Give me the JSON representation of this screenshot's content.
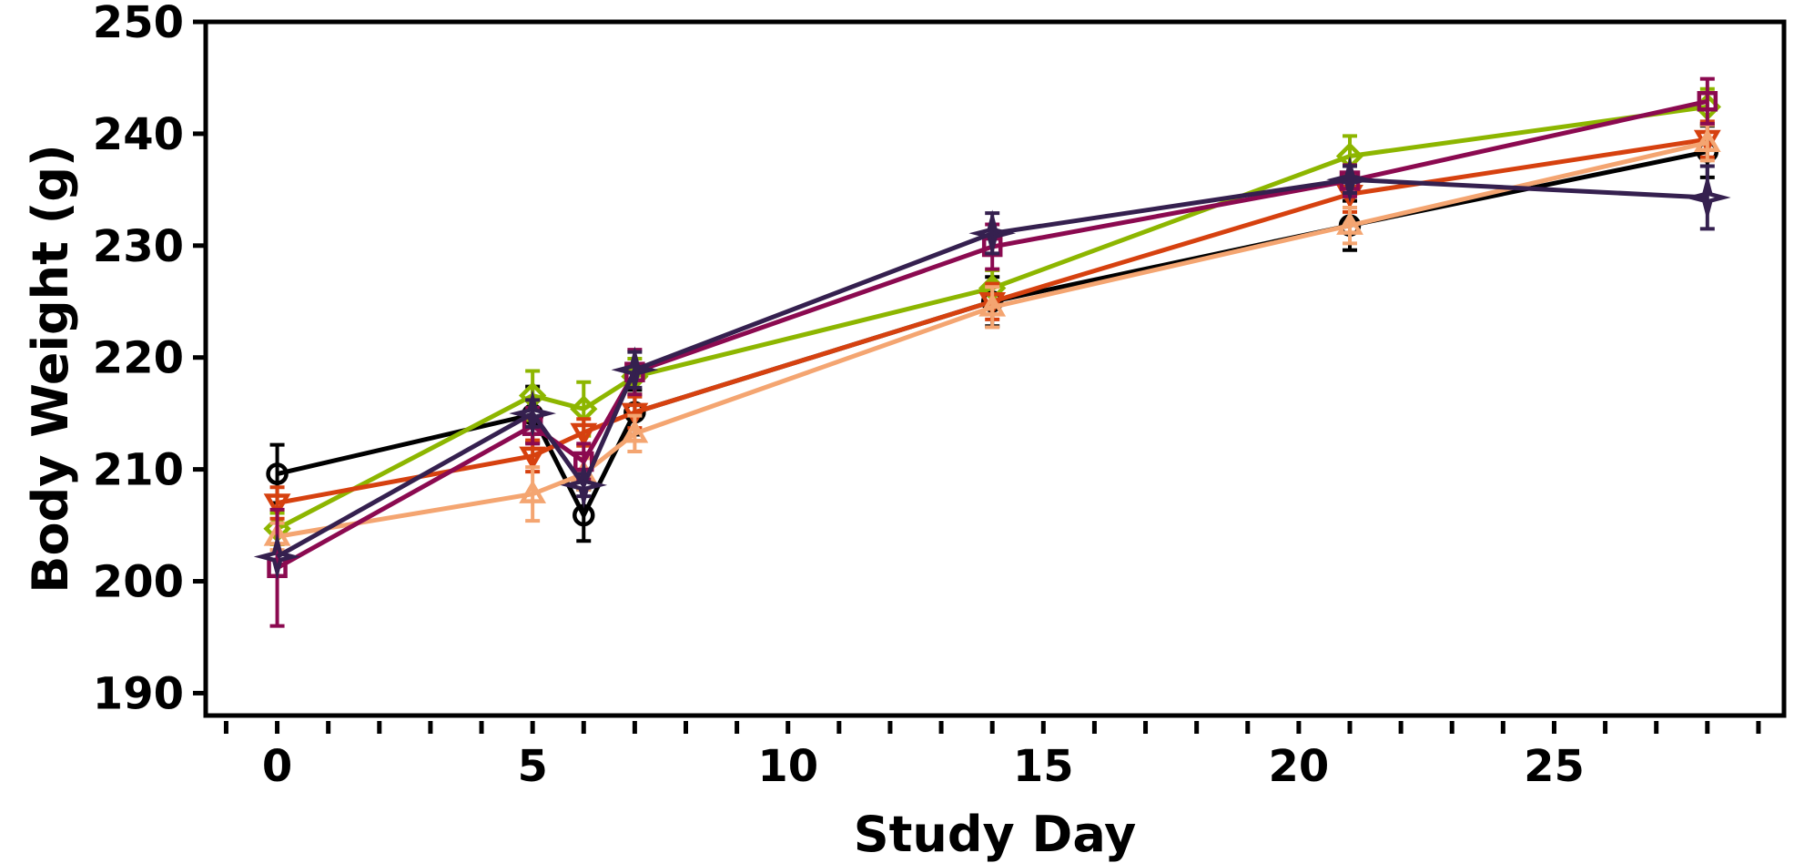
{
  "chart_data": {
    "type": "line",
    "title": "",
    "xlabel": "Study Day",
    "ylabel": "Body Weight (g)",
    "xlim": [
      -1.4,
      29.5
    ],
    "ylim": [
      188,
      250
    ],
    "x_major_ticks": [
      0,
      5,
      10,
      15,
      20,
      25
    ],
    "x_minor_ticks": [
      -1,
      1,
      2,
      3,
      4,
      6,
      7,
      8,
      9,
      11,
      12,
      13,
      14,
      16,
      17,
      18,
      19,
      21,
      22,
      23,
      24,
      26,
      27,
      28,
      29
    ],
    "y_ticks": [
      190,
      200,
      210,
      220,
      230,
      240,
      250
    ],
    "grid": false,
    "legend": "none",
    "series": [
      {
        "color": "#000000",
        "marker": "circle",
        "points": [
          {
            "x": 0,
            "y": 209.6,
            "err": 2.6
          },
          {
            "x": 5,
            "y": 214.9,
            "err": 2.5
          },
          {
            "x": 6,
            "y": 205.9,
            "err": 2.3
          },
          {
            "x": 7,
            "y": 215.1,
            "err": 2.0
          },
          {
            "x": 14,
            "y": 225.0,
            "err": 2.2
          },
          {
            "x": 21,
            "y": 231.8,
            "err": 2.2
          },
          {
            "x": 28,
            "y": 238.4,
            "err": 2.3
          }
        ]
      },
      {
        "color": "#8db600",
        "marker": "diamond",
        "points": [
          {
            "x": 0,
            "y": 204.7,
            "err": 1.4
          },
          {
            "x": 5,
            "y": 216.6,
            "err": 2.2
          },
          {
            "x": 6,
            "y": 215.4,
            "err": 2.4
          },
          {
            "x": 7,
            "y": 218.3,
            "err": 1.6
          },
          {
            "x": 14,
            "y": 226.2,
            "err": 1.6
          },
          {
            "x": 21,
            "y": 238.0,
            "err": 1.8
          },
          {
            "x": 28,
            "y": 242.4,
            "err": 1.6
          }
        ]
      },
      {
        "color": "#d6410f",
        "marker": "triangle-down",
        "points": [
          {
            "x": 0,
            "y": 207.0,
            "err": 1.4
          },
          {
            "x": 5,
            "y": 211.2,
            "err": 1.4
          },
          {
            "x": 6,
            "y": 213.3,
            "err": 1.2
          },
          {
            "x": 7,
            "y": 215.1,
            "err": 1.4
          },
          {
            "x": 14,
            "y": 225.0,
            "err": 1.6
          },
          {
            "x": 21,
            "y": 234.6,
            "err": 1.6
          },
          {
            "x": 28,
            "y": 239.5,
            "err": 1.6
          }
        ]
      },
      {
        "color": "#f4a571",
        "marker": "triangle-up",
        "points": [
          {
            "x": 0,
            "y": 204.0,
            "err": 1.2
          },
          {
            "x": 5,
            "y": 207.8,
            "err": 2.4
          },
          {
            "x": 6,
            "y": 209.6,
            "err": 1.4
          },
          {
            "x": 7,
            "y": 213.2,
            "err": 1.6
          },
          {
            "x": 14,
            "y": 224.5,
            "err": 1.8
          },
          {
            "x": 21,
            "y": 231.8,
            "err": 1.6
          },
          {
            "x": 28,
            "y": 239.2,
            "err": 1.6
          }
        ]
      },
      {
        "color": "#8b0a50",
        "marker": "square",
        "points": [
          {
            "x": 0,
            "y": 201.2,
            "err": 5.2
          },
          {
            "x": 5,
            "y": 213.9,
            "err": 1.6
          },
          {
            "x": 6,
            "y": 210.7,
            "err": 1.6
          },
          {
            "x": 7,
            "y": 218.7,
            "err": 2.0
          },
          {
            "x": 14,
            "y": 229.9,
            "err": 2.0
          },
          {
            "x": 21,
            "y": 235.8,
            "err": 1.4
          },
          {
            "x": 28,
            "y": 242.9,
            "err": 2.0
          }
        ]
      },
      {
        "color": "#35204f",
        "marker": "star4",
        "points": [
          {
            "x": 0,
            "y": 202.2,
            "err": 0
          },
          {
            "x": 5,
            "y": 215.0,
            "err": 1.2
          },
          {
            "x": 6,
            "y": 208.6,
            "err": 1.0
          },
          {
            "x": 7,
            "y": 218.9,
            "err": 1.6
          },
          {
            "x": 14,
            "y": 231.1,
            "err": 1.8
          },
          {
            "x": 21,
            "y": 235.9,
            "err": 1.2
          },
          {
            "x": 28,
            "y": 234.3,
            "err": 2.8
          }
        ]
      }
    ]
  }
}
